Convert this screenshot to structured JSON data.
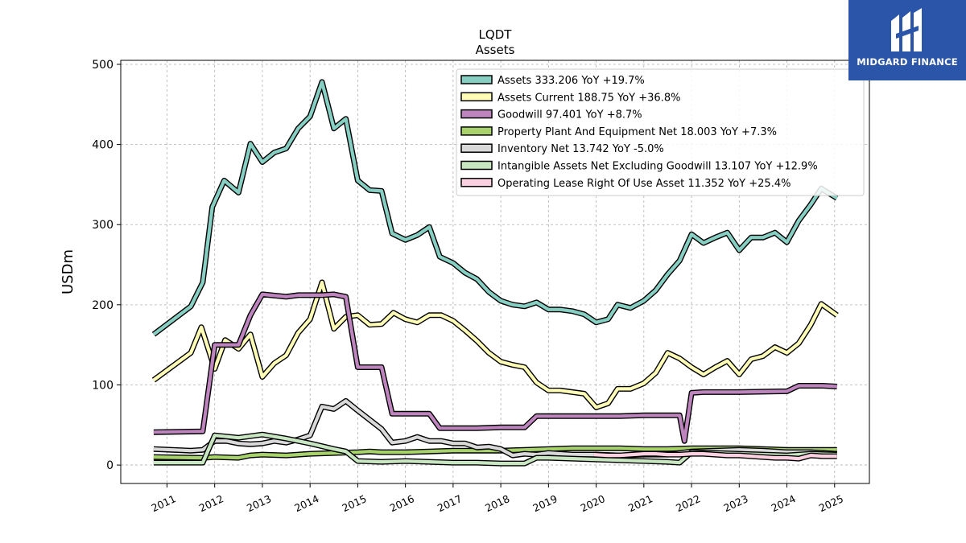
{
  "brand": {
    "name": "MIDGARD FINANCE",
    "bg_color": "#2b55a8"
  },
  "chart_data": {
    "type": "line",
    "title": "LQDT",
    "subtitle": "Assets",
    "ylabel": "USDm",
    "xlabel": "",
    "ylim": [
      -23,
      505
    ],
    "xlim": [
      2010.03,
      2025.73
    ],
    "yticks": [
      0,
      100,
      200,
      300,
      400,
      500
    ],
    "xticks": [
      2011,
      2012,
      2013,
      2014,
      2015,
      2016,
      2017,
      2018,
      2019,
      2020,
      2021,
      2022,
      2023,
      2024,
      2025
    ],
    "grid": true,
    "legend_position": "top-right",
    "series": [
      {
        "name": "Assets",
        "legend": "Assets  333.206 YoY +19.7%",
        "color": "#88cfc3",
        "points": [
          [
            2010.72,
            163
          ],
          [
            2011.5,
            198
          ],
          [
            2011.75,
            228
          ],
          [
            2011.95,
            322
          ],
          [
            2012.2,
            355
          ],
          [
            2012.5,
            340
          ],
          [
            2012.75,
            401
          ],
          [
            2013.0,
            378
          ],
          [
            2013.25,
            390
          ],
          [
            2013.5,
            395
          ],
          [
            2013.75,
            420
          ],
          [
            2014.0,
            435
          ],
          [
            2014.25,
            478
          ],
          [
            2014.5,
            420
          ],
          [
            2014.75,
            432
          ],
          [
            2015.0,
            355
          ],
          [
            2015.25,
            343
          ],
          [
            2015.5,
            342
          ],
          [
            2015.72,
            289
          ],
          [
            2016.0,
            281
          ],
          [
            2016.25,
            287
          ],
          [
            2016.5,
            297
          ],
          [
            2016.72,
            260
          ],
          [
            2017.0,
            252
          ],
          [
            2017.25,
            240
          ],
          [
            2017.5,
            232
          ],
          [
            2017.75,
            216
          ],
          [
            2018.0,
            205
          ],
          [
            2018.25,
            200
          ],
          [
            2018.5,
            198
          ],
          [
            2018.75,
            203
          ],
          [
            2019.0,
            194
          ],
          [
            2019.25,
            194
          ],
          [
            2019.5,
            192
          ],
          [
            2019.75,
            188
          ],
          [
            2020.0,
            178
          ],
          [
            2020.25,
            182
          ],
          [
            2020.45,
            200
          ],
          [
            2020.72,
            196
          ],
          [
            2021.0,
            205
          ],
          [
            2021.25,
            218
          ],
          [
            2021.5,
            238
          ],
          [
            2021.75,
            255
          ],
          [
            2022.0,
            288
          ],
          [
            2022.25,
            277
          ],
          [
            2022.5,
            284
          ],
          [
            2022.75,
            290
          ],
          [
            2023.0,
            268
          ],
          [
            2023.25,
            284
          ],
          [
            2023.5,
            284
          ],
          [
            2023.75,
            290
          ],
          [
            2024.0,
            278
          ],
          [
            2024.25,
            305
          ],
          [
            2024.5,
            325
          ],
          [
            2024.72,
            345
          ],
          [
            2025.05,
            333
          ]
        ]
      },
      {
        "name": "Assets Current",
        "legend": "Assets Current  188.75 YoY +36.8%",
        "color": "#fefcb6",
        "points": [
          [
            2010.72,
            106
          ],
          [
            2011.5,
            140
          ],
          [
            2011.72,
            172
          ],
          [
            2012.0,
            120
          ],
          [
            2012.22,
            156
          ],
          [
            2012.5,
            145
          ],
          [
            2012.75,
            163
          ],
          [
            2013.0,
            110
          ],
          [
            2013.25,
            127
          ],
          [
            2013.5,
            137
          ],
          [
            2013.75,
            165
          ],
          [
            2014.0,
            182
          ],
          [
            2014.25,
            228
          ],
          [
            2014.5,
            170
          ],
          [
            2014.75,
            185
          ],
          [
            2015.0,
            187
          ],
          [
            2015.25,
            175
          ],
          [
            2015.5,
            176
          ],
          [
            2015.75,
            190
          ],
          [
            2016.0,
            182
          ],
          [
            2016.25,
            178
          ],
          [
            2016.5,
            187
          ],
          [
            2016.75,
            187
          ],
          [
            2017.0,
            180
          ],
          [
            2017.25,
            168
          ],
          [
            2017.5,
            155
          ],
          [
            2017.75,
            140
          ],
          [
            2018.0,
            129
          ],
          [
            2018.25,
            125
          ],
          [
            2018.5,
            122
          ],
          [
            2018.75,
            103
          ],
          [
            2019.0,
            93
          ],
          [
            2019.25,
            93
          ],
          [
            2019.5,
            91
          ],
          [
            2019.75,
            89
          ],
          [
            2020.0,
            72
          ],
          [
            2020.25,
            77
          ],
          [
            2020.45,
            95
          ],
          [
            2020.72,
            95
          ],
          [
            2021.0,
            102
          ],
          [
            2021.25,
            115
          ],
          [
            2021.5,
            140
          ],
          [
            2021.75,
            133
          ],
          [
            2022.0,
            122
          ],
          [
            2022.25,
            113
          ],
          [
            2022.5,
            122
          ],
          [
            2022.75,
            130
          ],
          [
            2023.0,
            113
          ],
          [
            2023.25,
            132
          ],
          [
            2023.5,
            136
          ],
          [
            2023.75,
            147
          ],
          [
            2024.0,
            140
          ],
          [
            2024.25,
            152
          ],
          [
            2024.5,
            175
          ],
          [
            2024.72,
            201
          ],
          [
            2025.05,
            187
          ]
        ]
      },
      {
        "name": "Goodwill",
        "legend": "Goodwill  97.401 YoY +8.7%",
        "color": "#bd84bd",
        "points": [
          [
            2010.72,
            41
          ],
          [
            2011.75,
            42
          ],
          [
            2012.0,
            150
          ],
          [
            2012.5,
            150
          ],
          [
            2012.75,
            187
          ],
          [
            2013.0,
            213
          ],
          [
            2013.5,
            210
          ],
          [
            2013.75,
            212
          ],
          [
            2014.25,
            212
          ],
          [
            2014.5,
            213
          ],
          [
            2014.75,
            210
          ],
          [
            2015.0,
            122
          ],
          [
            2015.5,
            122
          ],
          [
            2015.72,
            64
          ],
          [
            2016.5,
            64
          ],
          [
            2016.72,
            46
          ],
          [
            2017.5,
            46
          ],
          [
            2018.0,
            47
          ],
          [
            2018.5,
            47
          ],
          [
            2018.75,
            61
          ],
          [
            2020.0,
            61
          ],
          [
            2020.5,
            61
          ],
          [
            2021.0,
            62
          ],
          [
            2021.75,
            62
          ],
          [
            2021.85,
            30
          ],
          [
            2022.0,
            90
          ],
          [
            2022.25,
            91
          ],
          [
            2023.0,
            91
          ],
          [
            2024.0,
            92
          ],
          [
            2024.25,
            99
          ],
          [
            2024.75,
            99
          ],
          [
            2025.05,
            98
          ]
        ]
      },
      {
        "name": "Property Plant And Equipment Net",
        "legend": "Property Plant And Equipment Net  18.003 YoY +7.3%",
        "color": "#a8d36c",
        "points": [
          [
            2010.72,
            10
          ],
          [
            2011.75,
            9
          ],
          [
            2012.0,
            10
          ],
          [
            2012.5,
            9
          ],
          [
            2012.75,
            12
          ],
          [
            2013.0,
            13
          ],
          [
            2013.5,
            12
          ],
          [
            2013.75,
            13
          ],
          [
            2014.0,
            14
          ],
          [
            2014.5,
            15
          ],
          [
            2015.0,
            16
          ],
          [
            2015.25,
            17
          ],
          [
            2015.5,
            16
          ],
          [
            2016.0,
            16
          ],
          [
            2016.5,
            17
          ],
          [
            2017.0,
            18
          ],
          [
            2017.5,
            18
          ],
          [
            2018.0,
            18
          ],
          [
            2018.5,
            19
          ],
          [
            2019.0,
            20
          ],
          [
            2019.5,
            21
          ],
          [
            2020.0,
            21
          ],
          [
            2020.5,
            21
          ],
          [
            2021.0,
            20
          ],
          [
            2021.5,
            20
          ],
          [
            2022.0,
            21
          ],
          [
            2022.5,
            21
          ],
          [
            2023.0,
            21
          ],
          [
            2023.5,
            20
          ],
          [
            2024.0,
            19
          ],
          [
            2024.5,
            19
          ],
          [
            2025.05,
            19
          ]
        ]
      },
      {
        "name": "Inventory Net",
        "legend": "Inventory Net  13.742 YoY -5.0%",
        "color": "#d9d9d9",
        "points": [
          [
            2010.72,
            20
          ],
          [
            2011.5,
            18
          ],
          [
            2011.75,
            19
          ],
          [
            2012.0,
            30
          ],
          [
            2012.25,
            30
          ],
          [
            2012.5,
            27
          ],
          [
            2012.75,
            26
          ],
          [
            2013.0,
            27
          ],
          [
            2013.25,
            30
          ],
          [
            2013.5,
            28
          ],
          [
            2013.75,
            32
          ],
          [
            2014.0,
            37
          ],
          [
            2014.25,
            73
          ],
          [
            2014.5,
            70
          ],
          [
            2014.75,
            80
          ],
          [
            2015.0,
            68
          ],
          [
            2015.5,
            45
          ],
          [
            2015.72,
            28
          ],
          [
            2016.0,
            30
          ],
          [
            2016.25,
            35
          ],
          [
            2016.5,
            30
          ],
          [
            2016.75,
            30
          ],
          [
            2017.0,
            27
          ],
          [
            2017.25,
            27
          ],
          [
            2017.5,
            22
          ],
          [
            2017.75,
            23
          ],
          [
            2018.0,
            20
          ],
          [
            2018.25,
            12
          ],
          [
            2018.5,
            14
          ],
          [
            2018.75,
            13
          ],
          [
            2019.0,
            15
          ],
          [
            2019.25,
            14
          ],
          [
            2019.5,
            13
          ],
          [
            2020.0,
            13
          ],
          [
            2020.5,
            12
          ],
          [
            2021.0,
            13
          ],
          [
            2021.5,
            13
          ],
          [
            2022.0,
            17
          ],
          [
            2022.5,
            18
          ],
          [
            2023.0,
            19
          ],
          [
            2023.5,
            18
          ],
          [
            2024.0,
            16
          ],
          [
            2024.5,
            16
          ],
          [
            2025.05,
            14
          ]
        ]
      },
      {
        "name": "Intangible Assets Net Excluding Goodwill",
        "legend": "Intangible Assets Net Excluding Goodwill  13.107 YoY +12.9%",
        "color": "#c7e6c1",
        "points": [
          [
            2010.72,
            3
          ],
          [
            2011.75,
            3
          ],
          [
            2012.0,
            37
          ],
          [
            2012.5,
            34
          ],
          [
            2013.0,
            38
          ],
          [
            2013.5,
            33
          ],
          [
            2014.0,
            27
          ],
          [
            2014.5,
            20
          ],
          [
            2014.75,
            17
          ],
          [
            2015.0,
            5
          ],
          [
            2015.5,
            4
          ],
          [
            2016.0,
            5
          ],
          [
            2016.5,
            4
          ],
          [
            2017.0,
            3
          ],
          [
            2017.5,
            3
          ],
          [
            2018.0,
            2
          ],
          [
            2018.5,
            2
          ],
          [
            2018.75,
            9
          ],
          [
            2019.0,
            9
          ],
          [
            2019.5,
            8
          ],
          [
            2020.0,
            7
          ],
          [
            2020.5,
            6
          ],
          [
            2021.0,
            5
          ],
          [
            2021.5,
            4
          ],
          [
            2021.75,
            3
          ],
          [
            2022.0,
            16
          ],
          [
            2022.5,
            15
          ],
          [
            2023.0,
            14
          ],
          [
            2023.5,
            13
          ],
          [
            2024.0,
            12
          ],
          [
            2024.5,
            14
          ],
          [
            2025.05,
            13
          ]
        ]
      },
      {
        "name": "Operating Lease Right Of Use Asset",
        "legend": "Operating Lease Right Of Use Asset  11.352 YoY +25.4%",
        "color": "#fbd0e0",
        "points": [
          [
            2019.95,
            13
          ],
          [
            2020.25,
            12
          ],
          [
            2020.5,
            12
          ],
          [
            2020.75,
            13
          ],
          [
            2021.0,
            14
          ],
          [
            2021.25,
            14
          ],
          [
            2021.5,
            13
          ],
          [
            2021.75,
            13
          ],
          [
            2022.0,
            14
          ],
          [
            2022.25,
            14
          ],
          [
            2022.5,
            13
          ],
          [
            2022.75,
            12
          ],
          [
            2023.0,
            12
          ],
          [
            2023.25,
            11
          ],
          [
            2023.5,
            10
          ],
          [
            2023.75,
            9
          ],
          [
            2024.0,
            9
          ],
          [
            2024.25,
            8
          ],
          [
            2024.5,
            12
          ],
          [
            2024.75,
            11
          ],
          [
            2025.05,
            11
          ]
        ]
      }
    ]
  }
}
